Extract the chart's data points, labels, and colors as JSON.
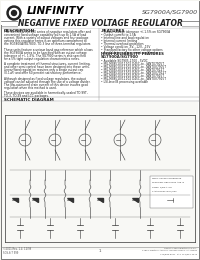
{
  "title_part": "SG7900A/SG7900",
  "title_main": "NEGATIVE FIXED VOLTAGE REGULATOR",
  "company": "LINFINITY",
  "company_sub": "MICROELECTRONICS",
  "section_description": "DESCRIPTION",
  "section_features": "FEATURES",
  "section_highrel1": "HIGH-RELIABILITY FEATURES",
  "section_highrel2": "SG7900A/SG7900",
  "section_schematic": "SCHEMATIC DIAGRAM",
  "footer_left1": "©2001 Rev. 1.4  12/99",
  "footer_left2": "SGS-6/7 999",
  "footer_center": "1",
  "footer_right1": "Linfinity Microelectronics Inc.",
  "footer_right2": "11861 Western Avenue, Garden Grove, CA 92841",
  "footer_right3": "714/898-8121  FAX 714/893-2570",
  "bg_color": "#f5f5f0",
  "text_color": "#1a1a1a",
  "border_color": "#444444",
  "logo_circle_color": "#222222",
  "circuit_bg": "#f8f8f5",
  "desc_lines": [
    "The SG7900A/SG7900 series of negative regulators offer and",
    "convenient fixed-voltage capability with up to 1.5A of load",
    "current. With a variety of output voltages and four package",
    "options this regulator series is an optimum complement to",
    "the SG7800A/SG7800, TO-3 line of three-terminal regulators.",
    "",
    "These units feature a unique band gap reference which allows",
    "the SG7900A series to be specified with an output voltage",
    "tolerance of +/- 1.5%. The SG7900 series is also specified",
    "for a 5% tight output regulation characteristics notes.",
    "",
    "A complete treatment of thermal structures, current limiting,",
    "and other semi-control have been designed into these units.",
    "Linear/fixed regulation requires only a single output cap",
    "(0.1uF) and offer 60 percent satisfactory performance.",
    "",
    "Although designed as fixed-voltage regulators, the output",
    "voltage can be adjusted through the use of a voltage divider.",
    "The low-quiescent drain current of this device insures good",
    "regulation when this method is used.",
    "",
    "These devices are available in hermetically-sealed TO-99T,",
    "TO-3, TO-99 and LCC packages."
  ],
  "features_lines": [
    "Output voltage tolerance +/-1.5% on SG7900A",
    "Output current to 1.5A",
    "Internal line and load regulation",
    "Internal current limiting",
    "Thermal overload protection",
    "Voltage condition -5V, -12V, -15V",
    "Standard factory fix other voltage options",
    "Available in surface-mount packages"
  ],
  "hr_lines": [
    "Available SG7905-1700 - 5VDC",
    "MIL-M38510/11102 D45C-to - JANTX7905T",
    "MIL-M38510/11102 D45C-to - JANTXV7905T",
    "MIL-M38510/11102 D45C-to - JANTX7912T",
    "MIL-M38510/11102 D45C-to - JANTXV7912T",
    "MIL-M38510/11102 D45C-to - JANTX7915T",
    "MIL-M38510/11102 D45C-to - JANTXV7915T",
    "LSI-level B processing available"
  ]
}
